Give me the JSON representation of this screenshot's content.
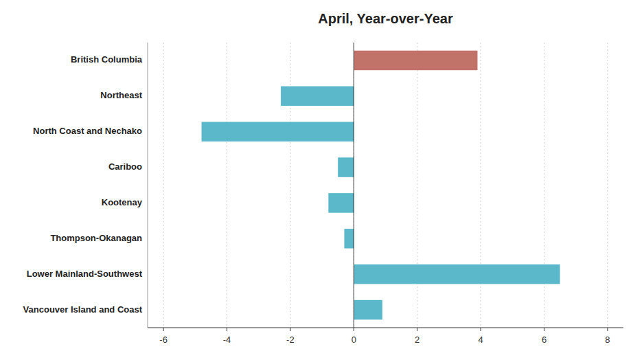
{
  "chart_data": {
    "type": "bar",
    "orientation": "horizontal",
    "title": "April, Year-over-Year",
    "categories": [
      "Vancouver Island and Coast",
      "Lower Mainland-Southwest",
      "Thompson-Okanagan",
      "Kootenay",
      "Cariboo",
      "North Coast and Nechako",
      "Northeast",
      "British Columbia"
    ],
    "values": [
      0.9,
      6.5,
      -0.3,
      -0.8,
      -0.5,
      -4.8,
      -2.3,
      3.9
    ],
    "colors": [
      "#5BB8CA",
      "#5BB8CA",
      "#5BB8CA",
      "#5BB8CA",
      "#5BB8CA",
      "#5BB8CA",
      "#5BB8CA",
      "#C1736A"
    ],
    "xlim": [
      -6.5,
      8.5
    ],
    "xticks": [
      -6,
      -4,
      -2,
      0,
      2,
      4,
      6,
      8
    ],
    "grid": true
  }
}
